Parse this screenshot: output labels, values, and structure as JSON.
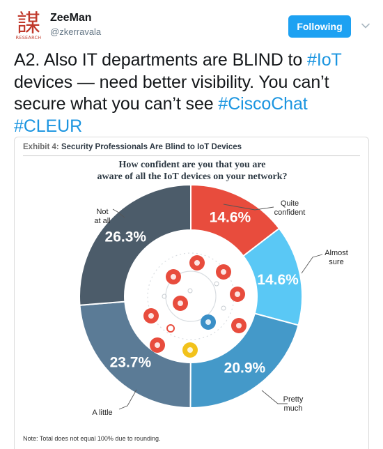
{
  "tweet": {
    "author_name": "ZeeMan",
    "author_handle": "@zkerravala",
    "follow_label": "Following",
    "text_parts": [
      {
        "text": "A2.  Also IT departments are BLIND to ",
        "tag": false
      },
      {
        "text": "#IoT",
        "tag": true
      },
      {
        "text": " devices — need better visibility.  You can’t secure what you can’t see ",
        "tag": false
      },
      {
        "text": "#CiscoChat",
        "tag": true
      },
      {
        "text": " ",
        "tag": false
      },
      {
        "text": "#CLEUR",
        "tag": true
      }
    ]
  },
  "avatar": {
    "glyph": "謀",
    "word": "RESEARCH",
    "color": "#c0392b"
  },
  "colors": {
    "accent": "#1da1f2",
    "hashtag": "#1b95e0"
  },
  "exhibit": {
    "label": "Exhibit 4:",
    "title": "Security Professionals Are Blind to IoT Devices",
    "question_line1": "How confident are you that you are",
    "question_line2": "aware of all the IoT devices on your network?",
    "note": "Note: Total does not equal 100% due to rounding."
  },
  "chart_data": {
    "type": "pie",
    "title": "How confident are you that you are aware of all the IoT devices on your network?",
    "categories": [
      "Quite confident",
      "Almost sure",
      "Pretty much",
      "A little",
      "Not at all"
    ],
    "category_lines": [
      [
        "Quite",
        "confident"
      ],
      [
        "Almost",
        "sure"
      ],
      [
        "Pretty",
        "much"
      ],
      [
        "A little"
      ],
      [
        "Not",
        "at all"
      ]
    ],
    "values": [
      14.6,
      14.6,
      20.9,
      23.7,
      26.3
    ],
    "labels": [
      "14.6%",
      "14.6%",
      "20.9%",
      "23.7%",
      "26.3%"
    ],
    "colors": [
      "#e84c3d",
      "#5ac8f5",
      "#4499c9",
      "#5b7b96",
      "#4c5c6a"
    ],
    "note": "Total does not equal 100% due to rounding."
  },
  "icons": [
    "cloud-icon",
    "thermometer-icon",
    "satellite-icon",
    "globe-icon",
    "card-icon",
    "location-pin-icon",
    "sync-icon",
    "bar-chart-icon",
    "gear-icon",
    "truck-icon",
    "lightbulb-icon"
  ]
}
